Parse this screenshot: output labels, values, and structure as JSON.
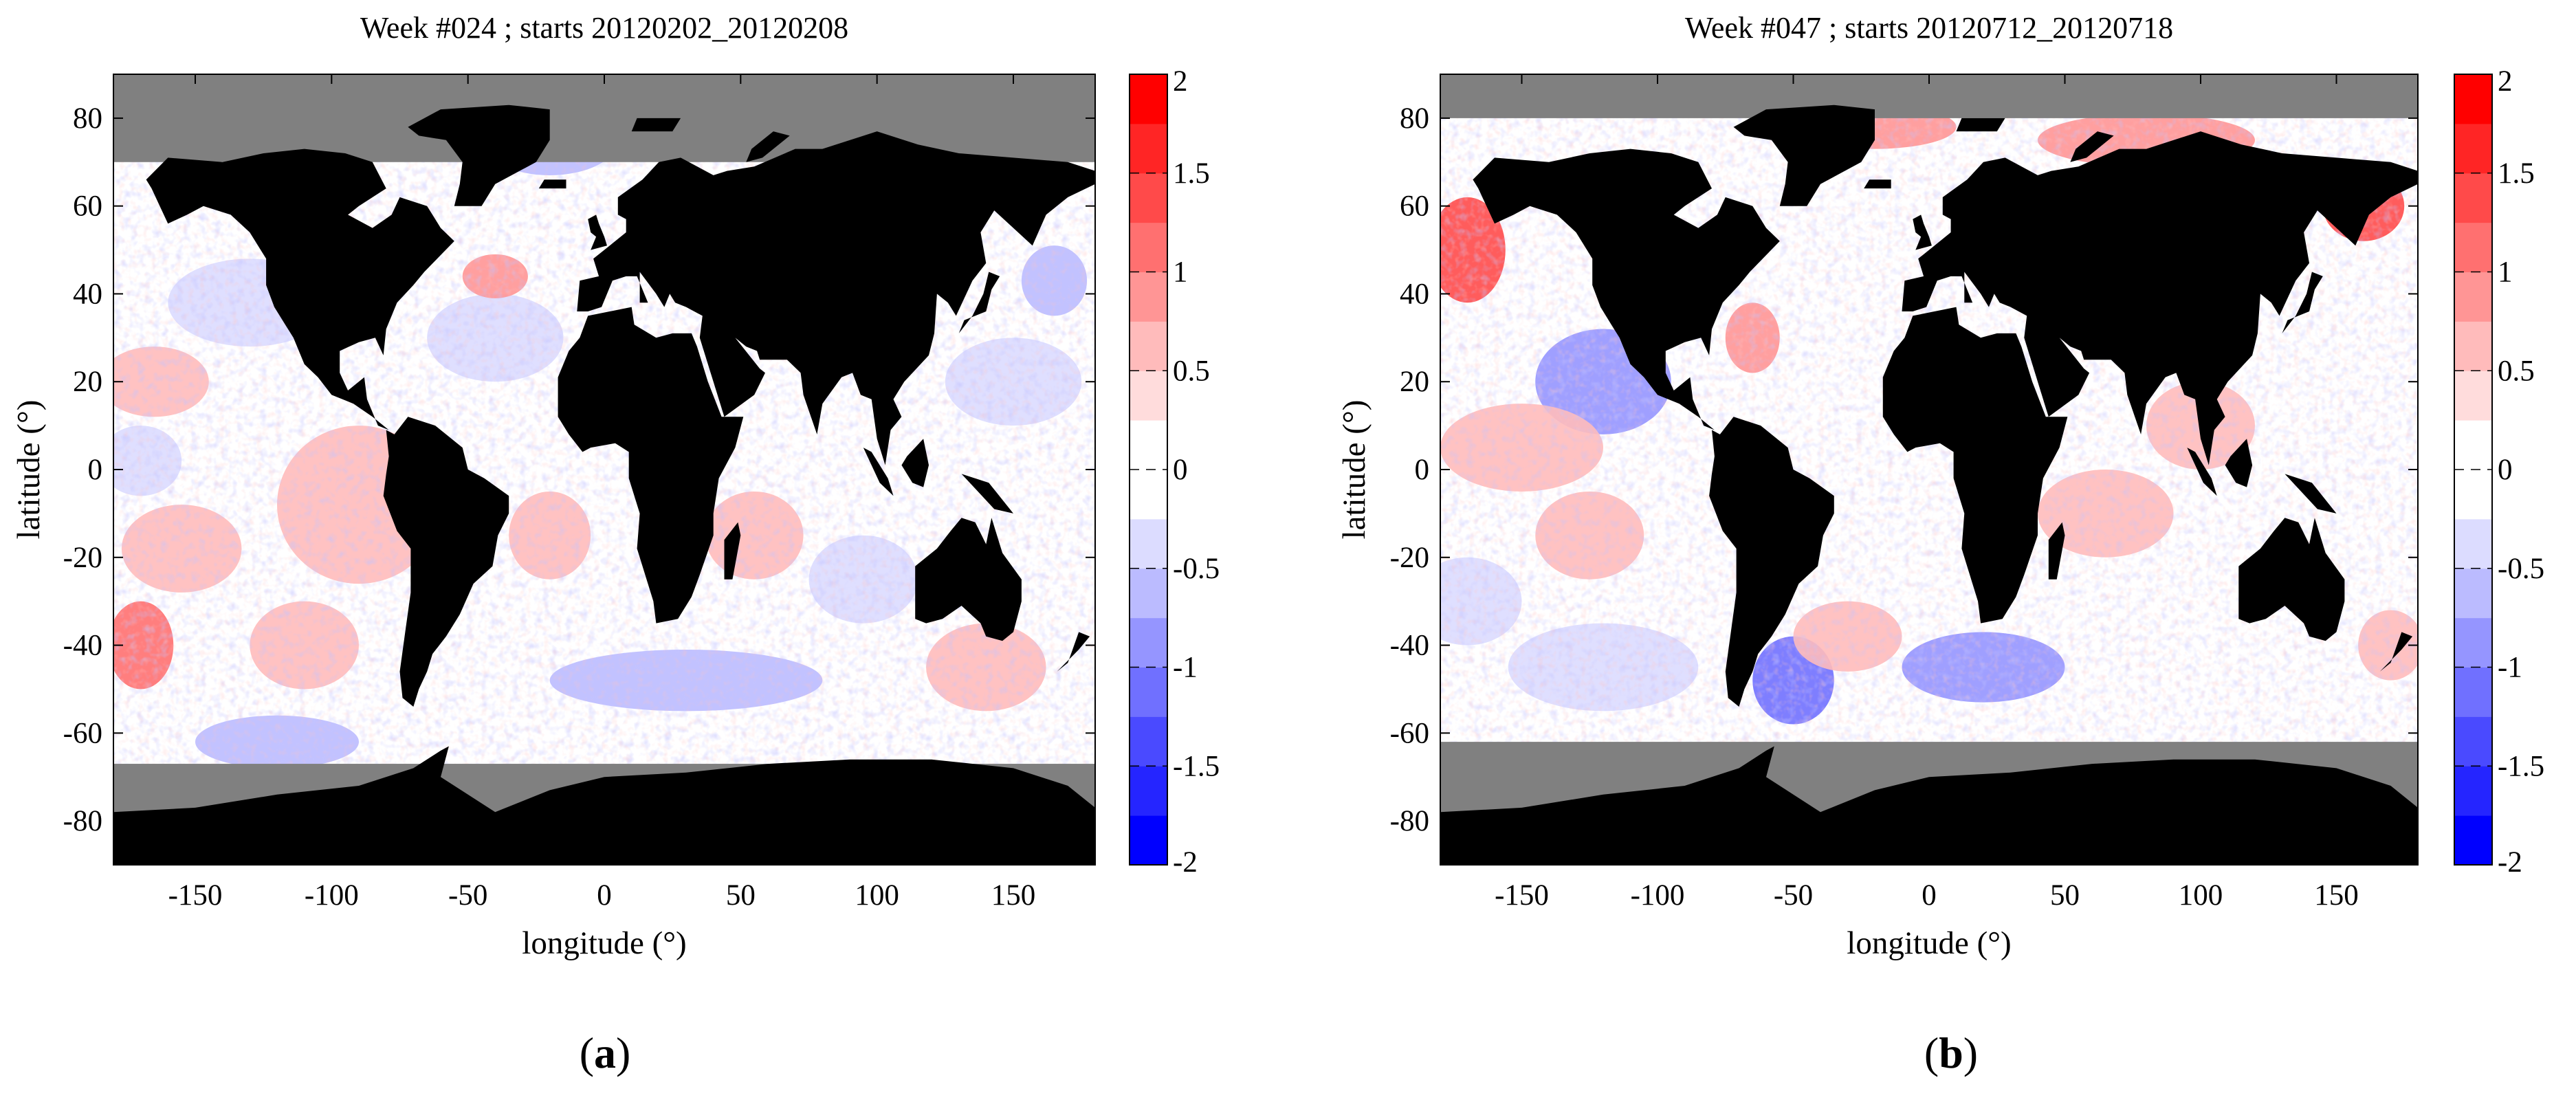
{
  "figure": {
    "captions": [
      {
        "open": "(",
        "letter": "a",
        "close": ")"
      },
      {
        "open": "(",
        "letter": "b",
        "close": ")"
      }
    ]
  },
  "colors": {
    "land": "#000000",
    "sea_ice": "#808080",
    "colorbar_bins": [
      "#0000ff",
      "#2525ff",
      "#4a4aff",
      "#7070ff",
      "#9595ff",
      "#bbbbff",
      "#dcdcff",
      "#ffffff",
      "#ffffff",
      "#ffdcdc",
      "#ffbbbb",
      "#ff9595",
      "#ff7070",
      "#ff4a4a",
      "#ff2525",
      "#ff0000"
    ]
  },
  "chart_data": [
    {
      "type": "heatmap",
      "title": "Week #024 ; starts 20120202_20120208",
      "xlabel": "longitude (°)",
      "ylabel": "latitude (°)",
      "xlim": [
        -180,
        180
      ],
      "ylim": [
        -90,
        90
      ],
      "xticks": [
        -150,
        -100,
        -50,
        0,
        50,
        100,
        150
      ],
      "yticks": [
        80,
        60,
        40,
        20,
        0,
        -20,
        -40,
        -60,
        -80
      ],
      "colorbar": {
        "range": [
          -2,
          2
        ],
        "step": 0.25,
        "ticks": [
          "2",
          "1.5",
          "1",
          "0.5",
          "0",
          "-0.5",
          "-1",
          "-1.5",
          "-2"
        ]
      },
      "sea_ice_north_lat": 70,
      "sea_ice_south_lat": -67,
      "anomalies": [
        {
          "lon": -170,
          "lat": -40,
          "value": 1.1,
          "rlon": 12,
          "rlat": 10
        },
        {
          "lon": -90,
          "lat": -8,
          "value": 0.7,
          "rlon": 30,
          "rlat": 18
        },
        {
          "lon": -155,
          "lat": -18,
          "value": 0.5,
          "rlon": 22,
          "rlat": 10
        },
        {
          "lon": -110,
          "lat": -40,
          "value": 0.5,
          "rlon": 20,
          "rlat": 10
        },
        {
          "lon": -165,
          "lat": 20,
          "value": 0.5,
          "rlon": 20,
          "rlat": 8
        },
        {
          "lon": -130,
          "lat": 38,
          "value": -0.4,
          "rlon": 30,
          "rlat": 10
        },
        {
          "lon": -170,
          "lat": 2,
          "value": -0.4,
          "rlon": 15,
          "rlat": 8
        },
        {
          "lon": -40,
          "lat": 30,
          "value": -0.3,
          "rlon": 25,
          "rlat": 10
        },
        {
          "lon": -40,
          "lat": 44,
          "value": 0.8,
          "rlon": 12,
          "rlat": 5
        },
        {
          "lon": -20,
          "lat": 75,
          "value": -0.6,
          "rlon": 25,
          "rlat": 8
        },
        {
          "lon": -20,
          "lat": -15,
          "value": 0.5,
          "rlon": 15,
          "rlat": 10
        },
        {
          "lon": 55,
          "lat": -15,
          "value": 0.7,
          "rlon": 18,
          "rlat": 10
        },
        {
          "lon": 140,
          "lat": -45,
          "value": 0.5,
          "rlon": 22,
          "rlat": 10
        },
        {
          "lon": 150,
          "lat": 20,
          "value": -0.3,
          "rlon": 25,
          "rlat": 10
        },
        {
          "lon": 95,
          "lat": -25,
          "value": -0.3,
          "rlon": 20,
          "rlat": 10
        },
        {
          "lon": -120,
          "lat": -62,
          "value": -0.6,
          "rlon": 30,
          "rlat": 6
        },
        {
          "lon": 30,
          "lat": -48,
          "value": -0.6,
          "rlon": 50,
          "rlat": 7
        },
        {
          "lon": 165,
          "lat": 43,
          "value": -0.6,
          "rlon": 12,
          "rlat": 8
        }
      ]
    },
    {
      "type": "heatmap",
      "title": "Week #047 ; starts 20120712_20120718",
      "xlabel": "longitude (°)",
      "ylabel": "latitude (°)",
      "xlim": [
        -180,
        180
      ],
      "ylim": [
        -90,
        90
      ],
      "xticks": [
        -150,
        -100,
        -50,
        0,
        50,
        100,
        150
      ],
      "yticks": [
        80,
        60,
        40,
        20,
        0,
        -20,
        -40,
        -60,
        -80
      ],
      "colorbar": {
        "range": [
          -2,
          2
        ],
        "step": 0.25,
        "ticks": [
          "2",
          "1.5",
          "1",
          "0.5",
          "0",
          "-0.5",
          "-1",
          "-1.5",
          "-2"
        ]
      },
      "sea_ice_north_lat": 80,
      "sea_ice_south_lat": -62,
      "anomalies": [
        {
          "lon": -170,
          "lat": 50,
          "value": 1.4,
          "rlon": 14,
          "rlat": 12
        },
        {
          "lon": -120,
          "lat": 20,
          "value": -0.8,
          "rlon": 25,
          "rlat": 12
        },
        {
          "lon": -150,
          "lat": 5,
          "value": 0.6,
          "rlon": 30,
          "rlat": 10
        },
        {
          "lon": -125,
          "lat": -15,
          "value": 0.5,
          "rlon": 20,
          "rlat": 10
        },
        {
          "lon": -65,
          "lat": 30,
          "value": 0.8,
          "rlon": 10,
          "rlat": 8
        },
        {
          "lon": -50,
          "lat": -48,
          "value": -1.1,
          "rlon": 15,
          "rlat": 10
        },
        {
          "lon": -30,
          "lat": -38,
          "value": 0.7,
          "rlon": 20,
          "rlat": 8
        },
        {
          "lon": 20,
          "lat": -45,
          "value": -0.8,
          "rlon": 30,
          "rlat": 8
        },
        {
          "lon": 65,
          "lat": -10,
          "value": 0.5,
          "rlon": 25,
          "rlat": 10
        },
        {
          "lon": 160,
          "lat": 60,
          "value": 1.4,
          "rlon": 15,
          "rlat": 8
        },
        {
          "lon": 80,
          "lat": 75,
          "value": 0.8,
          "rlon": 40,
          "rlat": 6
        },
        {
          "lon": -20,
          "lat": 78,
          "value": 0.9,
          "rlon": 30,
          "rlat": 5
        },
        {
          "lon": -120,
          "lat": -45,
          "value": -0.4,
          "rlon": 35,
          "rlat": 10
        },
        {
          "lon": 170,
          "lat": -40,
          "value": 0.7,
          "rlon": 12,
          "rlat": 8
        },
        {
          "lon": 100,
          "lat": 10,
          "value": 0.5,
          "rlon": 20,
          "rlat": 10
        },
        {
          "lon": -170,
          "lat": -30,
          "value": -0.3,
          "rlon": 20,
          "rlat": 10
        }
      ]
    }
  ]
}
